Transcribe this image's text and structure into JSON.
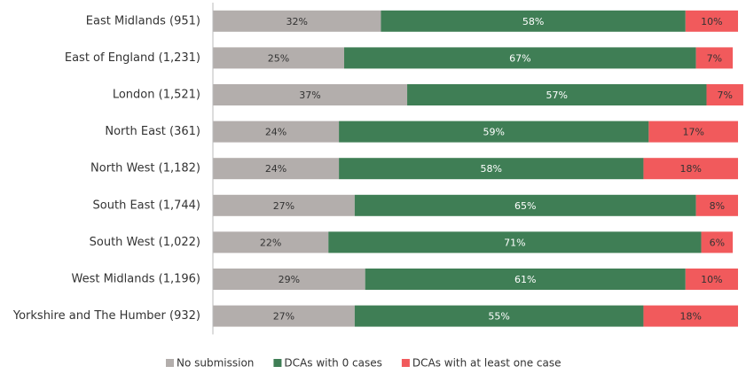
{
  "chart_data": {
    "type": "stacked-bar-horizontal",
    "categories": [
      "East Midlands (951)",
      "East of England (1,231)",
      "London (1,521)",
      "North East (361)",
      "North West (1,182)",
      "South East (1,744)",
      "South West (1,022)",
      "West Midlands (1,196)",
      "Yorkshire and The Humber (932)"
    ],
    "xlim": [
      0,
      100
    ],
    "series": [
      {
        "name": "No submission",
        "color": "#b3aeac",
        "values": [
          32,
          25,
          37,
          24,
          24,
          27,
          22,
          29,
          27
        ],
        "value_labels": [
          "32%",
          "25%",
          "37%",
          "24%",
          "24%",
          "27%",
          "22%",
          "29%",
          "27%"
        ]
      },
      {
        "name": "DCAs with 0 cases",
        "color": "#3f7e55",
        "values": [
          58,
          67,
          57,
          59,
          58,
          65,
          71,
          61,
          55
        ],
        "value_labels": [
          "58%",
          "67%",
          "57%",
          "59%",
          "58%",
          "65%",
          "71%",
          "61%",
          "55%"
        ]
      },
      {
        "name": "DCAs with at least one case",
        "color": "#f15a5c",
        "values": [
          10,
          7,
          7,
          17,
          18,
          8,
          6,
          10,
          18
        ],
        "value_labels": [
          "10%",
          "7%",
          "7%",
          "17%",
          "18%",
          "8%",
          "6%",
          "10%",
          "18%"
        ]
      }
    ],
    "legend": "bottom"
  }
}
